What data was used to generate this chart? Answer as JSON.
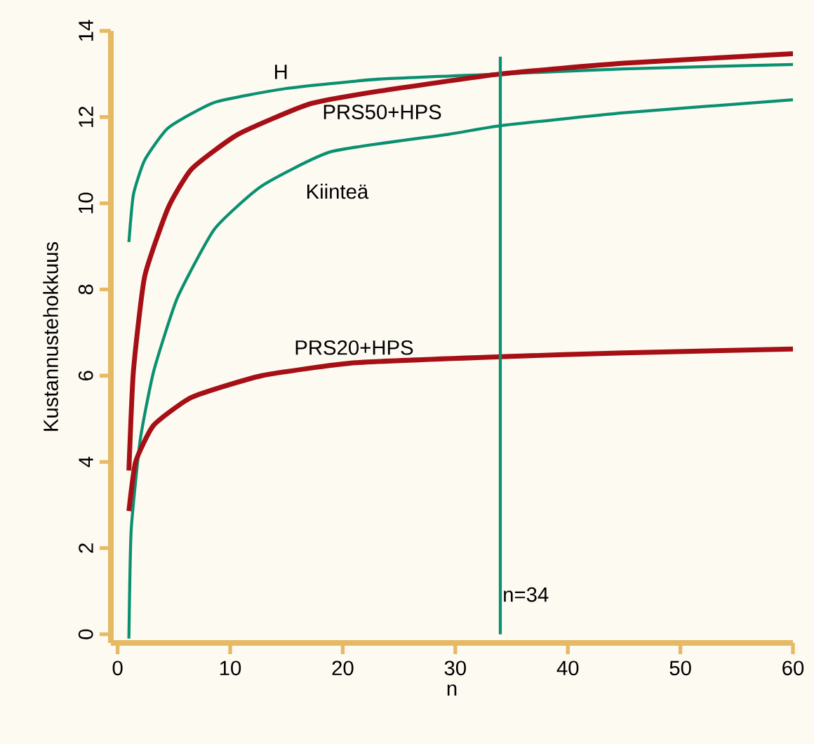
{
  "chart_data": {
    "type": "line",
    "xlabel": "n",
    "ylabel": "Kustannustehokkuus",
    "xlim": [
      -0.6,
      60
    ],
    "ylim": [
      -0.2,
      14
    ],
    "xticks": [
      0,
      10,
      20,
      30,
      40,
      50,
      60
    ],
    "yticks": [
      0,
      2,
      4,
      6,
      8,
      10,
      12,
      14
    ],
    "grid": false,
    "marker": "none",
    "line_style": "solid",
    "series": [
      {
        "name": "H",
        "color": "#0a9070",
        "x": [
          1,
          1.4,
          2.4,
          4.5,
          8.6,
          14.9,
          23.2,
          34,
          45,
          60
        ],
        "values": [
          9.1,
          10.2,
          11.0,
          11.75,
          12.34,
          12.66,
          12.88,
          13.0,
          13.12,
          13.22
        ]
      },
      {
        "name": "PRS50+HPS",
        "color": "#a50f15",
        "x": [
          1,
          1.4,
          2.4,
          4.5,
          6.6,
          10.7,
          17,
          23.2,
          34,
          45,
          60
        ],
        "values": [
          3.8,
          6.1,
          8.3,
          9.9,
          10.8,
          11.6,
          12.3,
          12.6,
          13.0,
          13.25,
          13.47
        ]
      },
      {
        "name": "Kiinteä",
        "color": "#0a9070",
        "x": [
          1,
          1.2,
          2,
          3.2,
          5.3,
          8.6,
          12.8,
          19,
          29.4,
          34,
          45,
          60
        ],
        "values": [
          -0.1,
          2.4,
          4.5,
          6.1,
          7.8,
          9.4,
          10.4,
          11.2,
          11.6,
          11.8,
          12.1,
          12.4
        ]
      },
      {
        "name": "PRS20+HPS",
        "color": "#a50f15",
        "x": [
          1,
          1.6,
          3.2,
          6.6,
          12.8,
          21.1,
          34,
          45,
          60
        ],
        "values": [
          2.86,
          4.0,
          4.85,
          5.5,
          6.0,
          6.3,
          6.44,
          6.53,
          6.62
        ]
      }
    ],
    "ref_lines": [
      {
        "axis": "x",
        "value": 34,
        "label": "n=34",
        "color": "#0a9070"
      }
    ]
  }
}
